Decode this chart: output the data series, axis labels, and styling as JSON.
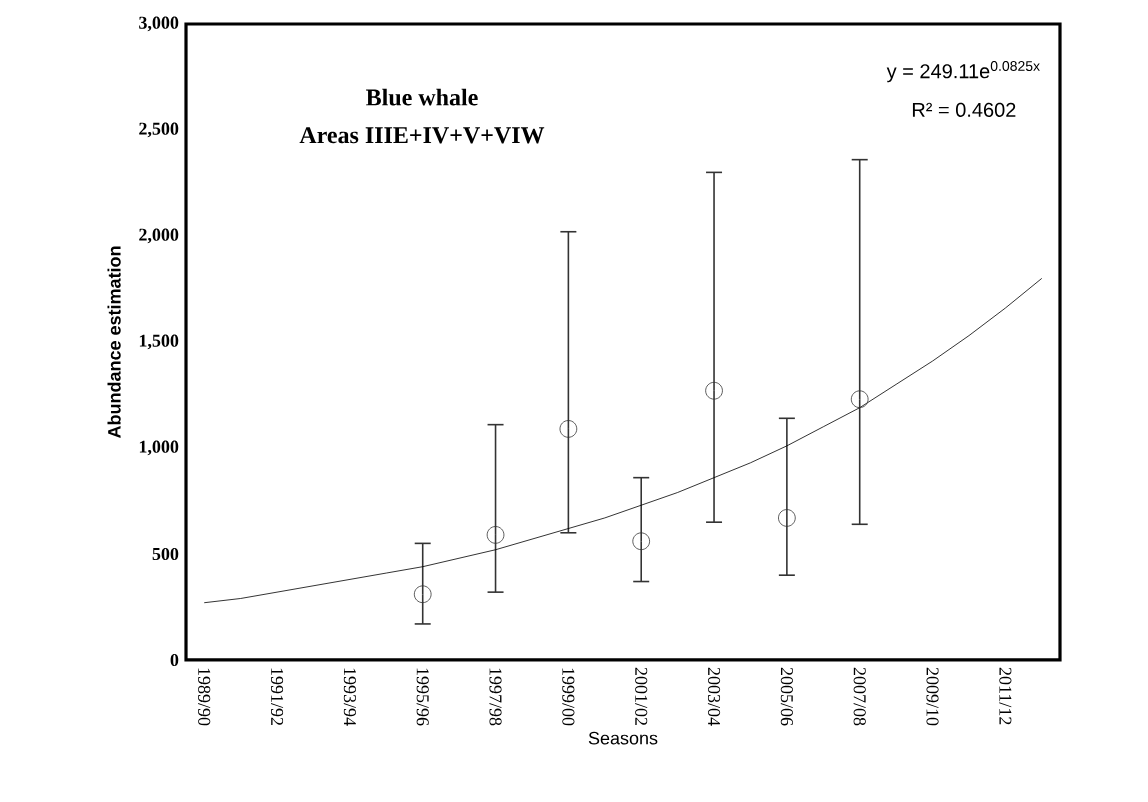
{
  "chart_data": {
    "type": "scatter",
    "title": "Blue whale",
    "subtitle": "Areas IIIE+IV+V+VIW",
    "xlabel": "Seasons",
    "ylabel": "Abundance estimation",
    "annotations": [
      "y = 249.11e$^{0.0825x}$",
      "R² = 0.4602"
    ],
    "categories": [
      "1989/90",
      null,
      "1991/92",
      null,
      "1993/94",
      null,
      "1995/96",
      null,
      "1997/98",
      null,
      "1999/00",
      null,
      "2001/02",
      null,
      "2003/04",
      null,
      "2005/06",
      null,
      "2007/08",
      null,
      "2009/10",
      null,
      "2011/12",
      null
    ],
    "ylim": [
      0,
      3000
    ],
    "yticks": [
      0,
      500,
      {
        "value": 1000,
        "label": "1,000"
      },
      {
        "value": 1500,
        "label": "1,500"
      },
      {
        "value": 2000,
        "label": "2,000"
      },
      {
        "value": 2500,
        "label": "2,500"
      },
      {
        "value": 3000,
        "label": "3,000"
      }
    ],
    "grid": false,
    "series": [
      {
        "marker": "circle",
        "color": "#333333",
        "values": [
          null,
          null,
          null,
          null,
          null,
          null,
          310,
          null,
          590,
          null,
          1090,
          null,
          560,
          null,
          1270,
          null,
          670,
          null,
          1230,
          null,
          null,
          null,
          null,
          null
        ],
        "errors": [
          null,
          null,
          null,
          null,
          null,
          null,
          [
            170,
            550
          ],
          null,
          [
            320,
            1110
          ],
          null,
          [
            600,
            2020
          ],
          null,
          [
            370,
            860
          ],
          null,
          [
            650,
            2300
          ],
          null,
          [
            400,
            1140
          ],
          null,
          [
            640,
            2360
          ],
          null,
          null,
          null,
          null,
          null
        ]
      },
      {
        "type": "line",
        "marker": "none",
        "color": "#000000",
        "values": [
          270,
          290,
          320,
          350,
          380,
          410,
          440,
          480,
          520,
          570,
          620,
          670,
          730,
          790,
          860,
          930,
          1010,
          1100,
          1190,
          1300,
          1410,
          1530,
          1660,
          1800
        ]
      }
    ]
  }
}
